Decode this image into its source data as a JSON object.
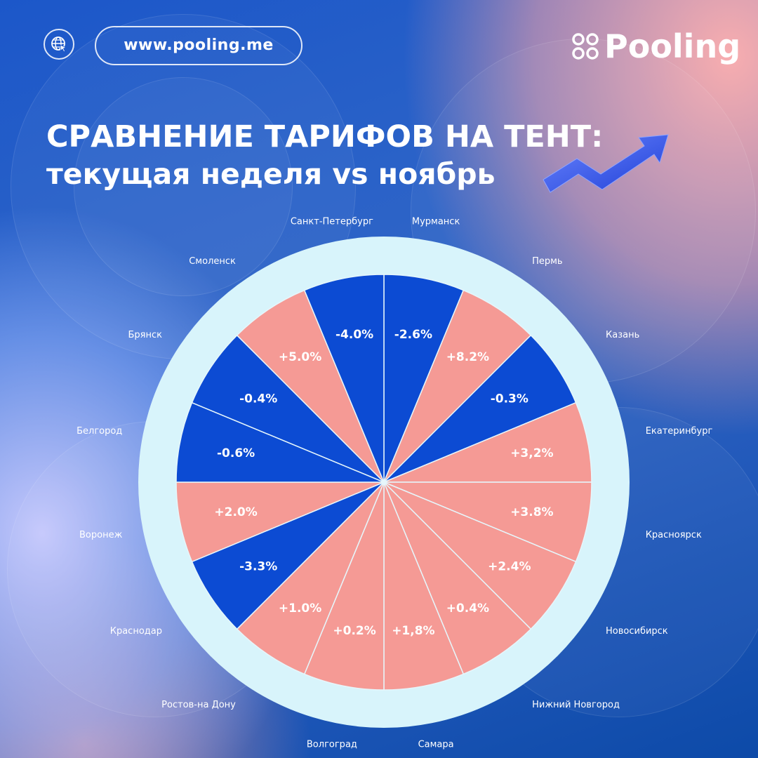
{
  "header": {
    "website": "www.pooling.me",
    "brand": "Pooling",
    "title_line1": "СРАВНЕНИЕ ТАРИФОВ НА ТЕНТ:",
    "title_line2": "текущая неделя vs ноябрь"
  },
  "colors": {
    "positive": "#f59a95",
    "negative": "#0c4bd3",
    "ring": "#d8f4fb"
  },
  "icons": [
    "globe-cursor-icon",
    "pooling-logo-icon",
    "trend-arrow-icon"
  ],
  "chart_data": {
    "type": "pie",
    "categories": [
      "Мурманск",
      "Пермь",
      "Казань",
      "Екатеринбург",
      "Красноярск",
      "Новосибирск",
      "Нижний Новгород",
      "Самара",
      "Волгоград",
      "Ростов-на Дону",
      "Краснодар",
      "Воронеж",
      "Белгород",
      "Брянск",
      "Смоленск",
      "Санкт-Петербург"
    ],
    "labels": [
      "-2.6%",
      "+8.2%",
      "-0.3%",
      "+3,2%",
      "+3.8%",
      "+2.4%",
      "+0.4%",
      "+1,8%",
      "+0.2%",
      "+1.0%",
      "-3.3%",
      "+2.0%",
      "-0.6%",
      "-0.4%",
      "+5.0%",
      "-4.0%"
    ],
    "values": [
      -2.6,
      8.2,
      -0.3,
      3.2,
      3.8,
      2.4,
      0.4,
      1.8,
      0.2,
      1.0,
      -3.3,
      2.0,
      -0.6,
      -0.4,
      5.0,
      -4.0
    ]
  }
}
